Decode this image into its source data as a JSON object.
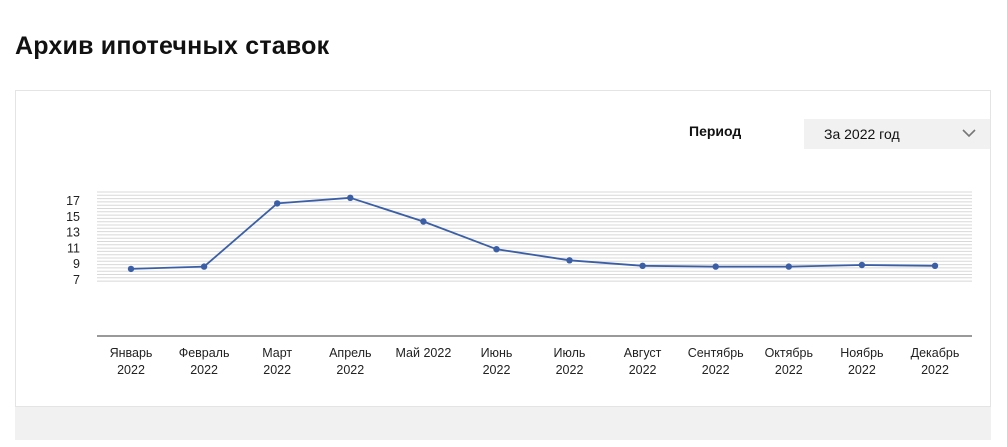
{
  "page": {
    "title": "Архив ипотечных ставок"
  },
  "filter": {
    "label": "Период",
    "selected": "За 2022 год"
  },
  "icons": {
    "dropdown": "chevron-down-icon"
  },
  "colors": {
    "line": "#3b5fa6",
    "grid": "#d8d8d8",
    "axis": "#333333",
    "select_bg": "#f1f1f1"
  },
  "chart_data": {
    "type": "line",
    "categories": [
      [
        "Январь",
        "2022"
      ],
      [
        "Февраль",
        "2022"
      ],
      [
        "Март",
        "2022"
      ],
      [
        "Апрель",
        "2022"
      ],
      [
        "Май 2022"
      ],
      [
        "Июнь",
        "2022"
      ],
      [
        "Июль",
        "2022"
      ],
      [
        "Август",
        "2022"
      ],
      [
        "Сентябрь",
        "2022"
      ],
      [
        "Октябрь",
        "2022"
      ],
      [
        "Ноябрь",
        "2022"
      ],
      [
        "Декабрь",
        "2022"
      ]
    ],
    "series": [
      {
        "values": [
          8.4,
          8.7,
          16.7,
          17.4,
          14.4,
          10.9,
          9.5,
          8.8,
          8.7,
          8.7,
          8.9,
          8.8
        ]
      }
    ],
    "yticks": [
      7,
      9,
      11,
      13,
      15,
      17
    ],
    "ylim": [
      7,
      17.5
    ],
    "grid": true,
    "legend": "none"
  }
}
